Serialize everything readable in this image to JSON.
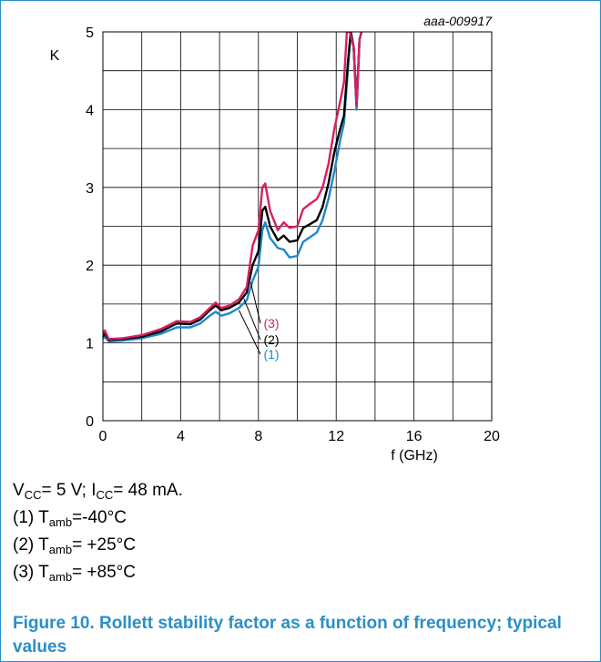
{
  "chart_data": {
    "type": "line",
    "id_label": "aaa-009917",
    "ylabel": "K",
    "xlabel": "f (GHz)",
    "xlim": [
      0,
      20
    ],
    "ylim": [
      0,
      5
    ],
    "x_ticks": [
      "0",
      "4",
      "8",
      "12",
      "16",
      "20"
    ],
    "y_ticks": [
      "0",
      "1",
      "2",
      "3",
      "4",
      "5"
    ],
    "grid": true,
    "series": [
      {
        "name": "(1)",
        "color": "#1f88c8",
        "points": [
          [
            0,
            1.05
          ],
          [
            0.1,
            1.08
          ],
          [
            0.3,
            1.02
          ],
          [
            1,
            1.03
          ],
          [
            2,
            1.06
          ],
          [
            3,
            1.12
          ],
          [
            3.8,
            1.2
          ],
          [
            4.5,
            1.2
          ],
          [
            5,
            1.25
          ],
          [
            5.5,
            1.35
          ],
          [
            5.8,
            1.4
          ],
          [
            6.1,
            1.35
          ],
          [
            6.5,
            1.38
          ],
          [
            7,
            1.45
          ],
          [
            7.4,
            1.55
          ],
          [
            7.7,
            1.8
          ],
          [
            8,
            1.98
          ],
          [
            8.2,
            2.45
          ],
          [
            8.35,
            2.55
          ],
          [
            8.6,
            2.35
          ],
          [
            9,
            2.22
          ],
          [
            9.3,
            2.2
          ],
          [
            9.6,
            2.1
          ],
          [
            10,
            2.12
          ],
          [
            10.3,
            2.3
          ],
          [
            10.6,
            2.35
          ],
          [
            11,
            2.42
          ],
          [
            11.3,
            2.58
          ],
          [
            11.6,
            2.85
          ],
          [
            11.9,
            3.2
          ],
          [
            12.2,
            3.6
          ],
          [
            12.4,
            3.82
          ],
          [
            12.6,
            4.5
          ],
          [
            12.75,
            5
          ],
          [
            12.9,
            4.8
          ],
          [
            13.05,
            4.0
          ],
          [
            13.2,
            4.9
          ],
          [
            13.3,
            5
          ]
        ]
      },
      {
        "name": "(2)",
        "color": "#000000",
        "points": [
          [
            0,
            1.08
          ],
          [
            0.1,
            1.12
          ],
          [
            0.3,
            1.04
          ],
          [
            1,
            1.05
          ],
          [
            2,
            1.08
          ],
          [
            3,
            1.15
          ],
          [
            3.8,
            1.25
          ],
          [
            4.5,
            1.24
          ],
          [
            5,
            1.3
          ],
          [
            5.5,
            1.42
          ],
          [
            5.8,
            1.48
          ],
          [
            6.1,
            1.42
          ],
          [
            6.5,
            1.45
          ],
          [
            7,
            1.52
          ],
          [
            7.4,
            1.65
          ],
          [
            7.7,
            2.0
          ],
          [
            8,
            2.18
          ],
          [
            8.2,
            2.7
          ],
          [
            8.35,
            2.75
          ],
          [
            8.6,
            2.5
          ],
          [
            9,
            2.32
          ],
          [
            9.3,
            2.38
          ],
          [
            9.6,
            2.3
          ],
          [
            10,
            2.32
          ],
          [
            10.3,
            2.48
          ],
          [
            10.6,
            2.52
          ],
          [
            11,
            2.58
          ],
          [
            11.3,
            2.75
          ],
          [
            11.6,
            3.05
          ],
          [
            11.9,
            3.45
          ],
          [
            12.2,
            3.75
          ],
          [
            12.4,
            3.92
          ],
          [
            12.6,
            4.6
          ],
          [
            12.75,
            5
          ],
          [
            12.9,
            4.8
          ],
          [
            13.05,
            4.05
          ],
          [
            13.2,
            4.9
          ],
          [
            13.3,
            5
          ]
        ]
      },
      {
        "name": "(3)",
        "color": "#d81e63",
        "points": [
          [
            0,
            1.12
          ],
          [
            0.1,
            1.16
          ],
          [
            0.3,
            1.05
          ],
          [
            1,
            1.06
          ],
          [
            2,
            1.1
          ],
          [
            3,
            1.18
          ],
          [
            3.8,
            1.28
          ],
          [
            4.5,
            1.27
          ],
          [
            5,
            1.33
          ],
          [
            5.5,
            1.45
          ],
          [
            5.8,
            1.52
          ],
          [
            6.1,
            1.45
          ],
          [
            6.5,
            1.48
          ],
          [
            7,
            1.56
          ],
          [
            7.4,
            1.72
          ],
          [
            7.7,
            2.25
          ],
          [
            8,
            2.45
          ],
          [
            8.2,
            3.0
          ],
          [
            8.35,
            3.05
          ],
          [
            8.6,
            2.7
          ],
          [
            9,
            2.45
          ],
          [
            9.3,
            2.55
          ],
          [
            9.6,
            2.48
          ],
          [
            10,
            2.5
          ],
          [
            10.3,
            2.72
          ],
          [
            10.6,
            2.78
          ],
          [
            11,
            2.85
          ],
          [
            11.3,
            3.0
          ],
          [
            11.6,
            3.3
          ],
          [
            11.9,
            3.75
          ],
          [
            12.2,
            4.1
          ],
          [
            12.4,
            4.35
          ],
          [
            12.55,
            5
          ],
          [
            12.7,
            5
          ],
          [
            12.9,
            4.8
          ],
          [
            13.05,
            4.05
          ],
          [
            13.2,
            4.9
          ],
          [
            13.3,
            5
          ]
        ]
      }
    ]
  },
  "caption": {
    "line1": {
      "v": "V",
      "v_sub": "CC",
      "v_rest": "= 5 V; I",
      "i_sub": "CC",
      "i_rest": "= 48 mA."
    },
    "items": [
      {
        "prefix": "(1) T",
        "sub": "amb",
        "rest": "=-40°C"
      },
      {
        "prefix": "(2) T",
        "sub": "amb",
        "rest": "= +25°C"
      },
      {
        "prefix": "(3) T",
        "sub": "amb",
        "rest": "= +85°C"
      }
    ]
  },
  "figure_title": "Figure 10.  Rollett stability factor as a function of frequency; typical values"
}
